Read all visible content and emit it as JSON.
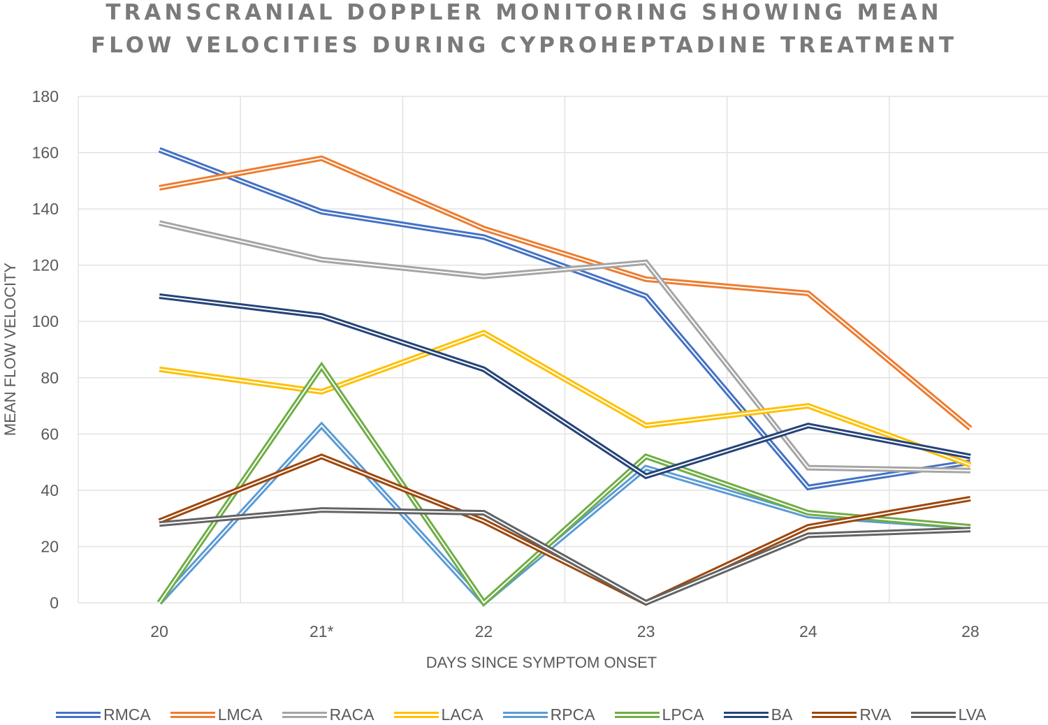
{
  "chart_data": {
    "type": "line",
    "title": "TRANSCRANIAL DOPPLER MONITORING SHOWING MEAN FLOW VELOCITIES DURING CYPROHEPTADINE TREATMENT",
    "title_lines": [
      "TRANSCRANIAL DOPPLER MONITORING SHOWING MEAN",
      "FLOW VELOCITIES DURING CYPROHEPTADINE TREATMENT"
    ],
    "xlabel": "DAYS SINCE SYMPTOM ONSET",
    "ylabel": "MEAN FLOW VELOCITY",
    "categories": [
      "20",
      "21*",
      "22",
      "23",
      "24",
      "28"
    ],
    "ylim": [
      0,
      180
    ],
    "yticks": [
      0,
      20,
      40,
      60,
      80,
      100,
      120,
      140,
      160,
      180
    ],
    "grid": true,
    "legend_position": "bottom",
    "line_style": "double",
    "series": [
      {
        "name": "RMCA",
        "color": "#4472c4",
        "values": [
          161,
          139,
          130,
          109,
          41,
          50
        ]
      },
      {
        "name": "LMCA",
        "color": "#ed7d31",
        "values": [
          147.5,
          158,
          133,
          115,
          110,
          62
        ]
      },
      {
        "name": "RACA",
        "color": "#a5a5a5",
        "values": [
          135,
          122,
          116,
          121,
          48,
          47
        ]
      },
      {
        "name": "LACA",
        "color": "#ffc000",
        "values": [
          83,
          75,
          96,
          63,
          70,
          49
        ]
      },
      {
        "name": "RPCA",
        "color": "#5b9bd5",
        "values": [
          0,
          63,
          0,
          48,
          31,
          27
        ]
      },
      {
        "name": "LPCA",
        "color": "#70ad47",
        "values": [
          0,
          84,
          0,
          52,
          32,
          27
        ]
      },
      {
        "name": "BA",
        "color": "#264478",
        "values": [
          109,
          102,
          83,
          45,
          63,
          52
        ]
      },
      {
        "name": "RVA",
        "color": "#9e480e",
        "values": [
          29,
          52,
          29,
          0,
          27,
          37
        ]
      },
      {
        "name": "LVA",
        "color": "#636363",
        "values": [
          28,
          33,
          32,
          0,
          24,
          26
        ]
      }
    ]
  }
}
